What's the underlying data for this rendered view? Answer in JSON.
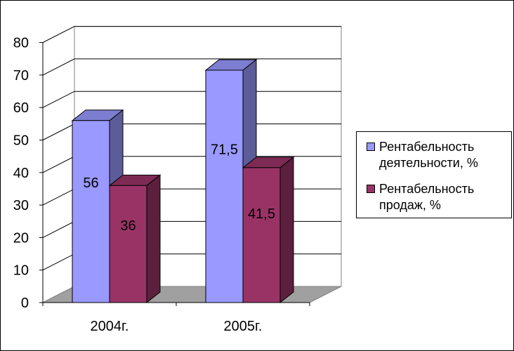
{
  "chart_data": {
    "type": "bar",
    "style": "3d-clustered-column",
    "categories": [
      "2004г.",
      "2005г."
    ],
    "series": [
      {
        "name": "Рентабельность деятельности, %",
        "values": [
          56,
          71.5
        ],
        "labels": [
          "56",
          "71,5"
        ],
        "color": "#9999ff"
      },
      {
        "name": "Рентабельность продаж, %",
        "values": [
          36,
          41.5
        ],
        "labels": [
          "36",
          "41,5"
        ],
        "color": "#993366"
      }
    ],
    "yticks": [
      "0",
      "10",
      "20",
      "30",
      "40",
      "50",
      "60",
      "70",
      "80"
    ],
    "ylim": [
      0,
      80
    ],
    "grid": true,
    "legend_position": "right",
    "title": "",
    "xlabel": "",
    "ylabel": ""
  }
}
